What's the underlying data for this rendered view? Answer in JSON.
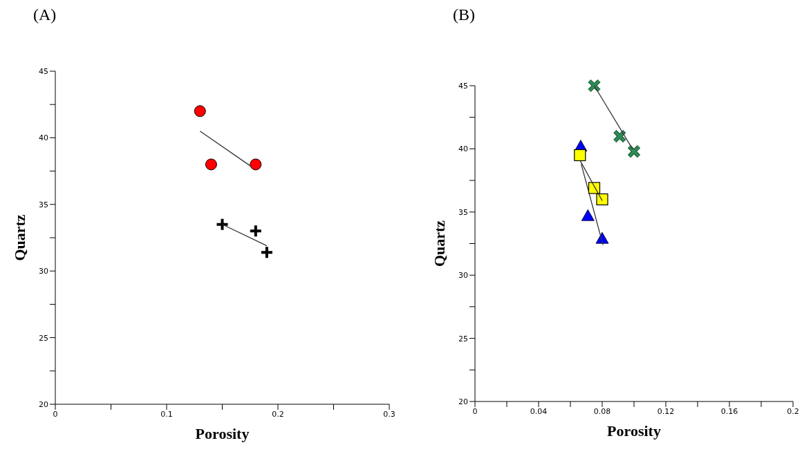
{
  "chart_data": [
    {
      "type": "scatter",
      "title": "(A)",
      "xlabel": "Porosity",
      "ylabel": "Quartz",
      "xlim": [
        0,
        0.3
      ],
      "ylim": [
        20,
        45
      ],
      "xticks": [
        0,
        {
          "value": 0.05,
          "label": null
        },
        0.1,
        {
          "value": 0.15,
          "label": null
        },
        0.2,
        {
          "value": 0.25,
          "label": null
        },
        0.3
      ],
      "yticks": [
        20,
        {
          "value": 22.5,
          "label": null
        },
        25,
        {
          "value": 27.5,
          "label": null
        },
        30,
        {
          "value": 32.5,
          "label": null
        },
        35,
        {
          "value": 37.5,
          "label": null
        },
        40,
        {
          "value": 42.5,
          "label": null
        },
        45
      ],
      "grid": false,
      "legend": false,
      "series": [
        {
          "color": "#ff0000",
          "marker": "circle",
          "x": [
            0.13,
            0.14,
            0.18
          ],
          "values": [
            42,
            38,
            38
          ]
        },
        {
          "color": "#000000",
          "marker": "cross",
          "x": [
            0.15,
            0.18,
            0.19
          ],
          "values": [
            33.5,
            33,
            31.4
          ]
        },
        {
          "type": "line",
          "color": "#333333",
          "x": [
            0.13,
            0.175
          ],
          "values": [
            40.5,
            37.9
          ]
        },
        {
          "type": "line",
          "color": "#333333",
          "x": [
            0.15,
            0.19
          ],
          "values": [
            33.5,
            31.9
          ]
        }
      ]
    },
    {
      "type": "scatter",
      "title": "(B)",
      "xlabel": "Porosity",
      "ylabel": "Quartz",
      "xlim": [
        0,
        0.2
      ],
      "ylim": [
        20,
        45
      ],
      "xticks": [
        0,
        {
          "value": 0.02,
          "label": null
        },
        0.04,
        {
          "value": 0.06,
          "label": null
        },
        0.08,
        {
          "value": 0.1,
          "label": null
        },
        0.12,
        {
          "value": 0.14,
          "label": null
        },
        0.16,
        {
          "value": 0.18,
          "label": null
        },
        0.2
      ],
      "yticks": [
        20,
        {
          "value": 22.5,
          "label": null
        },
        25,
        {
          "value": 27.5,
          "label": null
        },
        30,
        {
          "value": 32.5,
          "label": null
        },
        35,
        {
          "value": 37.5,
          "label": null
        },
        40,
        {
          "value": 42.5,
          "label": null
        },
        45
      ],
      "grid": false,
      "legend": false,
      "series": [
        {
          "color": "#2e8b57",
          "marker": "cross",
          "x": [
            0.075,
            0.091,
            0.1
          ],
          "values": [
            45,
            41,
            39.8
          ]
        },
        {
          "color": "#0000ff",
          "marker": "triangle",
          "x": [
            0.0665,
            0.071,
            0.08
          ],
          "values": [
            40.2,
            34.7,
            32.9
          ]
        },
        {
          "color": "#ffff00",
          "marker": "square",
          "x": [
            0.066,
            0.075,
            0.08
          ],
          "values": [
            39.5,
            36.9,
            36
          ]
        },
        {
          "type": "line",
          "color": "#333333",
          "x": [
            0.075,
            0.099
          ],
          "values": [
            45,
            40
          ]
        },
        {
          "type": "line",
          "color": "#333333",
          "x": [
            0.0668,
            0.0805
          ],
          "values": [
            38.8,
            32.4
          ]
        },
        {
          "type": "line",
          "color": "#333333",
          "x": [
            0.066,
            0.08
          ],
          "values": [
            39.1,
            35.9
          ]
        }
      ]
    }
  ]
}
